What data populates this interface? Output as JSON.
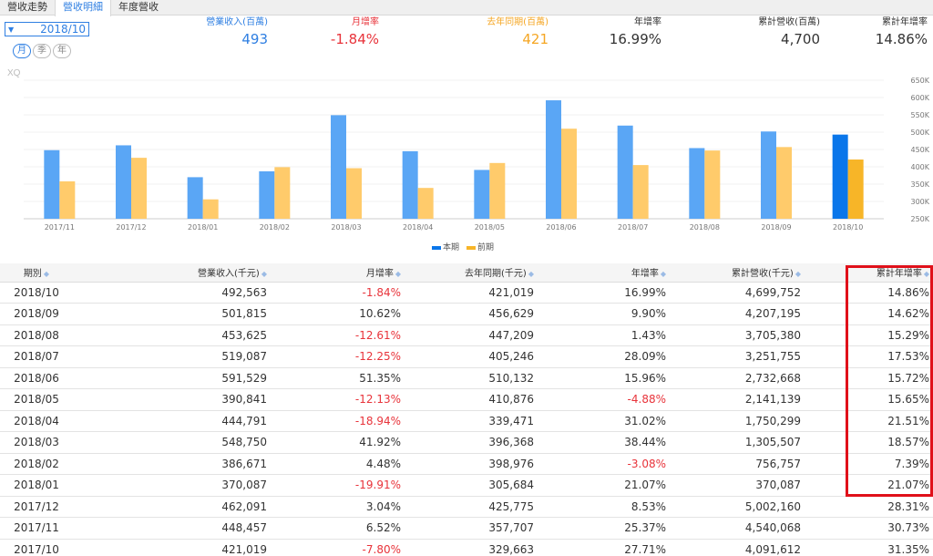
{
  "tabs": [
    {
      "label": "營收走勢"
    },
    {
      "label": "營收明細"
    },
    {
      "label": "年度營收"
    }
  ],
  "period": {
    "selected": "2018/10",
    "buttons": [
      "月",
      "季",
      "年"
    ]
  },
  "summary": [
    {
      "label": "營業收入(百萬)",
      "value": "493",
      "color": "#2f7fe2"
    },
    {
      "label": "月增率",
      "value": "-1.84%",
      "color": "#e8333a"
    },
    {
      "label": "去年同期(百萬)",
      "value": "421",
      "color": "#f5a623"
    },
    {
      "label": "年增率",
      "value": "16.99%",
      "color": "#333333"
    },
    {
      "label": "累計營收(百萬)",
      "value": "4,700",
      "color": "#333333"
    },
    {
      "label": "累計年增率",
      "value": "14.86%",
      "color": "#333333"
    }
  ],
  "chart_data": {
    "type": "bar",
    "watermark": "XQ",
    "categories": [
      "2017/11",
      "2017/12",
      "2018/01",
      "2018/02",
      "2018/03",
      "2018/04",
      "2018/05",
      "2018/06",
      "2018/07",
      "2018/08",
      "2018/09",
      "2018/10"
    ],
    "series": [
      {
        "name": "本期",
        "color": "#5aa6f5",
        "highlight_color": "#0a76ea",
        "values": [
          448,
          462,
          370,
          387,
          549,
          445,
          391,
          592,
          519,
          454,
          502,
          493
        ]
      },
      {
        "name": "前期",
        "color": "#ffcb6b",
        "highlight_color": "#f7b528",
        "values": [
          358,
          426,
          306,
          399,
          396,
          339,
          411,
          510,
          405,
          447,
          457,
          421
        ]
      }
    ],
    "y_ticks": [
      "250K",
      "300K",
      "350K",
      "400K",
      "450K",
      "500K",
      "550K",
      "600K",
      "650K"
    ],
    "ylim": [
      250,
      650
    ],
    "y_axis_position": "right",
    "highlight_index": 11
  },
  "table": {
    "headers": [
      "期別",
      "營業收入(千元)",
      "月增率",
      "去年同期(千元)",
      "年增率",
      "累計營收(千元)",
      "累計年增率"
    ],
    "rows": [
      [
        "2018/10",
        "492,563",
        "-1.84%",
        "421,019",
        "16.99%",
        "4,699,752",
        "14.86%"
      ],
      [
        "2018/09",
        "501,815",
        "10.62%",
        "456,629",
        "9.90%",
        "4,207,195",
        "14.62%"
      ],
      [
        "2018/08",
        "453,625",
        "-12.61%",
        "447,209",
        "1.43%",
        "3,705,380",
        "15.29%"
      ],
      [
        "2018/07",
        "519,087",
        "-12.25%",
        "405,246",
        "28.09%",
        "3,251,755",
        "17.53%"
      ],
      [
        "2018/06",
        "591,529",
        "51.35%",
        "510,132",
        "15.96%",
        "2,732,668",
        "15.72%"
      ],
      [
        "2018/05",
        "390,841",
        "-12.13%",
        "410,876",
        "-4.88%",
        "2,141,139",
        "15.65%"
      ],
      [
        "2018/04",
        "444,791",
        "-18.94%",
        "339,471",
        "31.02%",
        "1,750,299",
        "21.51%"
      ],
      [
        "2018/03",
        "548,750",
        "41.92%",
        "396,368",
        "38.44%",
        "1,305,507",
        "18.57%"
      ],
      [
        "2018/02",
        "386,671",
        "4.48%",
        "398,976",
        "-3.08%",
        "756,757",
        "7.39%"
      ],
      [
        "2018/01",
        "370,087",
        "-19.91%",
        "305,684",
        "21.07%",
        "370,087",
        "21.07%"
      ],
      [
        "2017/12",
        "462,091",
        "3.04%",
        "425,775",
        "8.53%",
        "5,002,160",
        "28.31%"
      ],
      [
        "2017/11",
        "448,457",
        "6.52%",
        "357,707",
        "25.37%",
        "4,540,068",
        "30.73%"
      ],
      [
        "2017/10",
        "421,019",
        "-7.80%",
        "329,663",
        "27.71%",
        "4,091,612",
        "31.35%"
      ]
    ]
  }
}
